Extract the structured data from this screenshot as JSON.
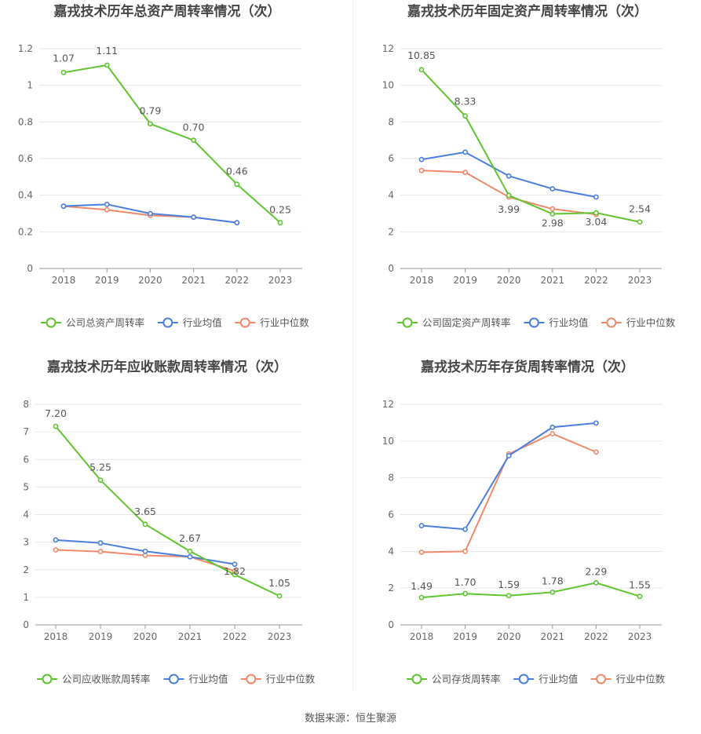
{
  "source_text": "数据来源：恒生聚源",
  "colors": {
    "company": "#5fc52e",
    "avg": "#4a7fe0",
    "median": "#f0886a",
    "grid": "#e6e6e6",
    "axis": "#999999",
    "text": "#666666",
    "title": "#444444"
  },
  "chart_data": [
    {
      "type": "line",
      "title": "嘉戎技术历年总资产周转率情况（次）",
      "categories": [
        "2018",
        "2019",
        "2020",
        "2021",
        "2022",
        "2023"
      ],
      "yticks": [
        "0",
        "0.2",
        "0.4",
        "0.6",
        "0.8",
        "1",
        "1.2"
      ],
      "ylim": [
        0,
        1.2
      ],
      "series": [
        {
          "name": "公司总资产周转率",
          "key": "company",
          "values": [
            1.07,
            1.11,
            0.79,
            0.7,
            0.46,
            0.25
          ],
          "labels": [
            "1.07",
            "1.11",
            "0.79",
            "0.70",
            "0.46",
            "0.25"
          ]
        },
        {
          "name": "行业均值",
          "key": "avg",
          "values": [
            0.34,
            0.35,
            0.3,
            0.28,
            0.25,
            null
          ]
        },
        {
          "name": "行业中位数",
          "key": "median",
          "values": [
            0.34,
            0.32,
            0.29,
            0.28,
            0.25,
            null
          ]
        }
      ]
    },
    {
      "type": "line",
      "title": "嘉戎技术历年固定资产周转率情况（次）",
      "categories": [
        "2018",
        "2019",
        "2020",
        "2021",
        "2022",
        "2023"
      ],
      "yticks": [
        "0",
        "2",
        "4",
        "6",
        "8",
        "10",
        "12"
      ],
      "ylim": [
        0,
        12
      ],
      "series": [
        {
          "name": "公司固定资产周转率",
          "key": "company",
          "values": [
            10.85,
            8.33,
            3.99,
            2.98,
            3.04,
            2.54
          ],
          "labels": [
            "10.85",
            "8.33",
            "3.99",
            "2.98",
            "3.04",
            "2.54"
          ]
        },
        {
          "name": "行业均值",
          "key": "avg",
          "values": [
            5.95,
            6.35,
            5.05,
            4.35,
            3.9,
            null
          ]
        },
        {
          "name": "行业中位数",
          "key": "median",
          "values": [
            5.35,
            5.25,
            3.9,
            3.25,
            2.95,
            null
          ]
        }
      ]
    },
    {
      "type": "line",
      "title": "嘉戎技术历年应收账款周转率情况（次）",
      "categories": [
        "2018",
        "2019",
        "2020",
        "2021",
        "2022",
        "2023"
      ],
      "yticks": [
        "0",
        "1",
        "2",
        "3",
        "4",
        "5",
        "6",
        "7",
        "8"
      ],
      "ylim": [
        0,
        8
      ],
      "series": [
        {
          "name": "公司应收账款周转率",
          "key": "company",
          "values": [
            7.2,
            5.25,
            3.65,
            2.67,
            1.82,
            1.05
          ],
          "labels": [
            "7.20",
            "5.25",
            "3.65",
            "2.67",
            "1.82",
            "1.05"
          ]
        },
        {
          "name": "行业均值",
          "key": "avg",
          "values": [
            3.08,
            2.97,
            2.67,
            2.47,
            2.2,
            null
          ]
        },
        {
          "name": "行业中位数",
          "key": "median",
          "values": [
            2.72,
            2.66,
            2.52,
            2.47,
            1.95,
            null
          ]
        }
      ]
    },
    {
      "type": "line",
      "title": "嘉戎技术历年存货周转率情况（次）",
      "categories": [
        "2018",
        "2019",
        "2020",
        "2021",
        "2022",
        "2023"
      ],
      "yticks": [
        "0",
        "2",
        "4",
        "6",
        "8",
        "10",
        "12"
      ],
      "ylim": [
        0,
        12
      ],
      "series": [
        {
          "name": "公司存货周转率",
          "key": "company",
          "values": [
            1.49,
            1.7,
            1.59,
            1.78,
            2.29,
            1.55
          ],
          "labels": [
            "1.49",
            "1.70",
            "1.59",
            "1.78",
            "2.29",
            "1.55"
          ]
        },
        {
          "name": "行业均值",
          "key": "avg",
          "values": [
            5.4,
            5.2,
            9.2,
            10.75,
            10.98,
            null
          ]
        },
        {
          "name": "行业中位数",
          "key": "median",
          "values": [
            3.95,
            4.0,
            9.3,
            10.4,
            9.4,
            null
          ]
        }
      ]
    }
  ]
}
